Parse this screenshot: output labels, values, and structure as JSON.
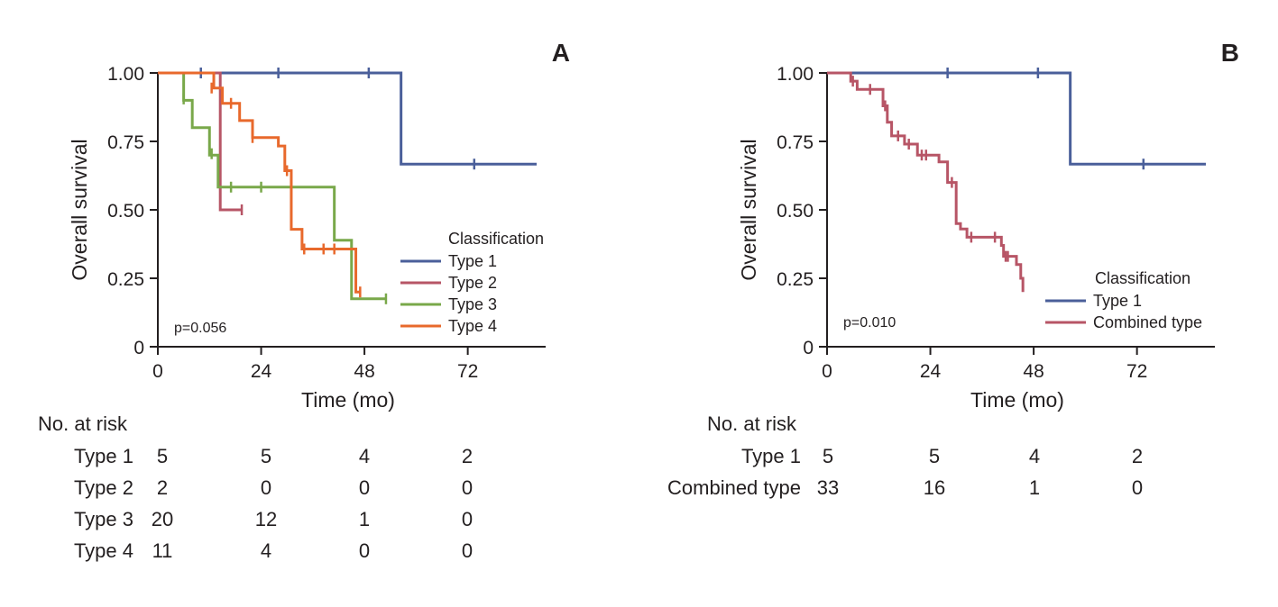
{
  "chart_data": [
    {
      "type": "line",
      "panel_label": "A",
      "xlabel": "Time (mo)",
      "ylabel": "Overall survival",
      "xlim": [
        0,
        88
      ],
      "ylim": [
        0,
        1
      ],
      "xticks": [
        0,
        24,
        48,
        72
      ],
      "yticks": [
        0,
        0.25,
        0.5,
        0.75,
        1.0
      ],
      "ytick_labels": [
        "0",
        "0.25",
        "0.50",
        "0.75",
        "1.00"
      ],
      "pvalue": "p=0.056",
      "legend_title": "Classification",
      "legend_position": "right",
      "series": [
        {
          "name": "Type 1",
          "color": "#4a5f9a",
          "steps": [
            [
              0,
              1.0
            ],
            [
              56.5,
              0.667
            ],
            [
              88,
              0.667
            ]
          ],
          "censored": [
            [
              10,
              1.0
            ],
            [
              28,
              1.0
            ],
            [
              49,
              1.0
            ],
            [
              73.5,
              0.667
            ]
          ]
        },
        {
          "name": "Type 2",
          "color": "#b75566",
          "steps": [
            [
              0,
              1.0
            ],
            [
              14.5,
              0.5
            ],
            [
              19.5,
              0.5
            ]
          ],
          "censored": [
            [
              19.5,
              0.5
            ]
          ]
        },
        {
          "name": "Type 3",
          "color": "#79a84a",
          "steps": [
            [
              0,
              1.0
            ],
            [
              6,
              0.9
            ],
            [
              8,
              0.8
            ],
            [
              12,
              0.7
            ],
            [
              14,
              0.583
            ],
            [
              41,
              0.583
            ],
            [
              41,
              0.389
            ],
            [
              45,
              0.389
            ],
            [
              45,
              0.175
            ],
            [
              53,
              0.175
            ]
          ],
          "censored": [
            [
              6,
              0.905
            ],
            [
              12.5,
              0.705
            ],
            [
              17,
              0.583
            ],
            [
              24,
              0.583
            ],
            [
              53,
              0.175
            ]
          ]
        },
        {
          "name": "Type 4",
          "color": "#e8692c",
          "steps": [
            [
              0,
              1.0
            ],
            [
              13,
              0.945
            ],
            [
              15,
              0.889
            ],
            [
              19,
              0.826
            ],
            [
              22,
              0.764
            ],
            [
              28,
              0.733
            ],
            [
              29.5,
              0.643
            ],
            [
              31,
              0.429
            ],
            [
              33.5,
              0.357
            ],
            [
              46,
              0.357
            ],
            [
              46,
              0.2
            ],
            [
              47,
              0.2
            ]
          ],
          "censored": [
            [
              12.5,
              0.945
            ],
            [
              17,
              0.889
            ],
            [
              22,
              0.764
            ],
            [
              30,
              0.643
            ],
            [
              34,
              0.357
            ],
            [
              38.5,
              0.357
            ],
            [
              41,
              0.357
            ],
            [
              47,
              0.2
            ]
          ]
        }
      ],
      "risk_table": {
        "title": "No. at risk",
        "rows": [
          {
            "label": "Type 1",
            "values": [
              "5",
              "5",
              "4",
              "2"
            ]
          },
          {
            "label": "Type 2",
            "values": [
              "2",
              "0",
              "0",
              "0"
            ]
          },
          {
            "label": "Type 3",
            "values": [
              "20",
              "12",
              "1",
              "0"
            ]
          },
          {
            "label": "Type 4",
            "values": [
              "11",
              "4",
              "0",
              "0"
            ]
          }
        ]
      }
    },
    {
      "type": "line",
      "panel_label": "B",
      "xlabel": "Time (mo)",
      "ylabel": "Overall survival",
      "xlim": [
        0,
        88
      ],
      "ylim": [
        0,
        1
      ],
      "xticks": [
        0,
        24,
        48,
        72
      ],
      "yticks": [
        0,
        0.25,
        0.5,
        0.75,
        1.0
      ],
      "ytick_labels": [
        "0",
        "0.25",
        "0.50",
        "0.75",
        "1.00"
      ],
      "pvalue": "p=0.010",
      "legend_title": "Classification",
      "legend_position": "right",
      "series": [
        {
          "name": "Type 1",
          "color": "#4a5f9a",
          "steps": [
            [
              0,
              1.0
            ],
            [
              56.5,
              0.667
            ],
            [
              88,
              0.667
            ]
          ],
          "censored": [
            [
              28,
              1.0
            ],
            [
              49,
              1.0
            ],
            [
              73.5,
              0.667
            ]
          ]
        },
        {
          "name": "Combined type",
          "color": "#b75566",
          "steps": [
            [
              0,
              1.0
            ],
            [
              5.5,
              0.97
            ],
            [
              7,
              0.94
            ],
            [
              13,
              0.88
            ],
            [
              14,
              0.82
            ],
            [
              15,
              0.77
            ],
            [
              18,
              0.74
            ],
            [
              21,
              0.7
            ],
            [
              26,
              0.675
            ],
            [
              28,
              0.6
            ],
            [
              30,
              0.45
            ],
            [
              31,
              0.43
            ],
            [
              32.5,
              0.4
            ],
            [
              40.5,
              0.37
            ],
            [
              41,
              0.33
            ],
            [
              44,
              0.3
            ],
            [
              45,
              0.25
            ],
            [
              45.5,
              0.2
            ]
          ],
          "censored": [
            [
              5.5,
              0.985
            ],
            [
              6,
              0.97
            ],
            [
              10,
              0.94
            ],
            [
              13.5,
              0.88
            ],
            [
              16.5,
              0.77
            ],
            [
              19,
              0.74
            ],
            [
              22,
              0.7
            ],
            [
              23,
              0.7
            ],
            [
              29,
              0.6
            ],
            [
              33.5,
              0.4
            ],
            [
              39,
              0.4
            ],
            [
              41.5,
              0.33
            ],
            [
              42,
              0.33
            ]
          ]
        }
      ],
      "risk_table": {
        "title": "No. at risk",
        "rows": [
          {
            "label": "Type 1",
            "values": [
              "5",
              "5",
              "4",
              "2"
            ]
          },
          {
            "label": "Combined type",
            "values": [
              "33",
              "16",
              "1",
              "0"
            ]
          }
        ]
      }
    }
  ]
}
